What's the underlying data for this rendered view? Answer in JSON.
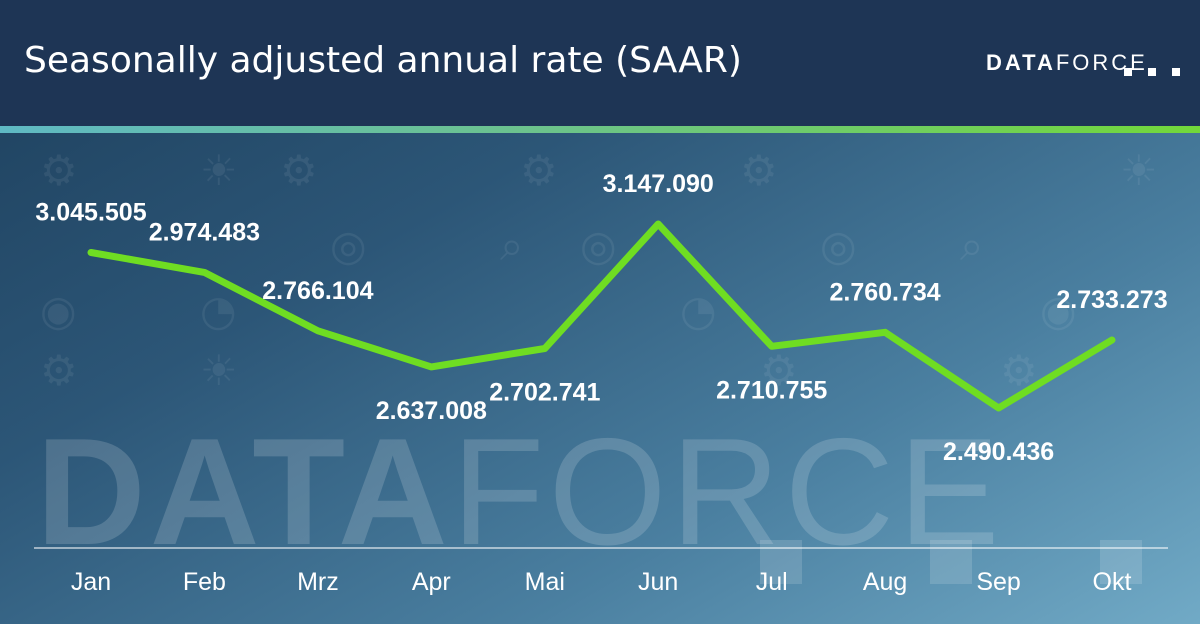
{
  "header": {
    "title": "Seasonally adjusted annual rate (SAAR)",
    "logo_bold": "DATA",
    "logo_light": "FORCE"
  },
  "watermark": {
    "bold": "DATA",
    "light": "FORCE"
  },
  "colors": {
    "header_bg": "#1e3555",
    "line": "#6fdd22",
    "accent_start": "#5fb9c4",
    "accent_end": "#72d83a"
  },
  "chart_data": {
    "type": "line",
    "title": "Seasonally adjusted annual rate (SAAR)",
    "xlabel": "",
    "ylabel": "",
    "categories": [
      "Jan",
      "Feb",
      "Mrz",
      "Apr",
      "Mai",
      "Jun",
      "Jul",
      "Aug",
      "Sep",
      "Okt"
    ],
    "series": [
      {
        "name": "SAAR",
        "values": [
          3045505,
          2974483,
          2766104,
          2637008,
          2702741,
          3147090,
          2710755,
          2760734,
          2490436,
          2733273
        ],
        "labels": [
          "3.045.505",
          "2.974.483",
          "2.766.104",
          "2.637.008",
          "2.702.741",
          "3.147.090",
          "2.710.755",
          "2.760.734",
          "2.490.436",
          "2.733.273"
        ],
        "label_positions": [
          "above",
          "above",
          "above",
          "below",
          "below",
          "above",
          "below",
          "above",
          "below",
          "above"
        ]
      }
    ],
    "grid": false,
    "legend": "none"
  }
}
